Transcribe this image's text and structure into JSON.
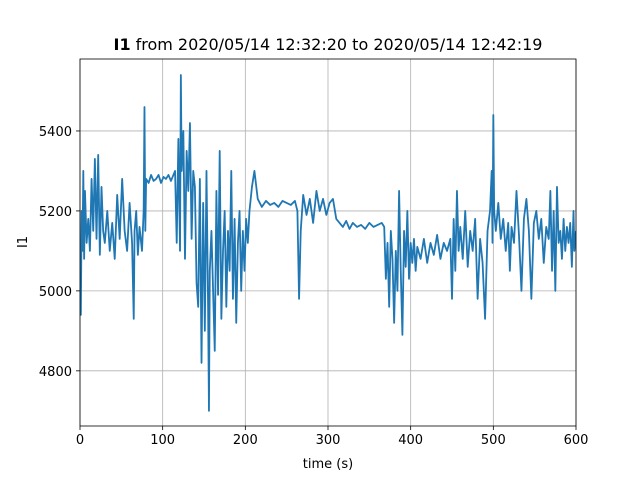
{
  "chart_data": {
    "type": "line",
    "title_bold": "I1",
    "title": "from 2020/05/14 12:32:20 to 2020/05/14 12:42:19",
    "x_label": "time (s)",
    "y_label": "I1",
    "xlim": [
      0,
      600
    ],
    "ylim": [
      4662,
      5580
    ],
    "xticks": [
      0,
      100,
      200,
      300,
      400,
      500,
      600
    ],
    "yticks": [
      4800,
      5000,
      5200,
      5400
    ],
    "grid": true,
    "x": [
      0,
      1,
      2,
      3,
      4,
      5,
      6,
      8,
      10,
      12,
      14,
      16,
      18,
      20,
      22,
      24,
      26,
      28,
      30,
      33,
      36,
      39,
      42,
      45,
      48,
      51,
      54,
      57,
      60,
      63,
      65,
      66,
      68,
      70,
      72,
      75,
      77,
      78,
      79,
      80,
      83,
      86,
      89,
      92,
      95,
      98,
      101,
      104,
      107,
      110,
      113,
      115,
      117,
      119,
      121,
      122,
      123,
      125,
      127,
      129,
      131,
      133,
      135,
      137,
      139,
      141,
      143,
      145,
      147,
      149,
      151,
      153,
      155,
      156,
      157,
      159,
      161,
      163,
      165,
      167,
      169,
      171,
      173,
      175,
      177,
      179,
      181,
      183,
      185,
      187,
      189,
      191,
      193,
      195,
      197,
      199,
      201,
      203,
      205,
      208,
      211,
      215,
      220,
      225,
      230,
      235,
      240,
      245,
      250,
      255,
      260,
      263,
      265,
      267,
      270,
      274,
      278,
      282,
      286,
      290,
      294,
      298,
      302,
      306,
      310,
      314,
      318,
      322,
      326,
      330,
      335,
      340,
      345,
      350,
      355,
      360,
      365,
      368,
      370,
      372,
      374,
      376,
      378,
      380,
      382,
      384,
      386,
      388,
      390,
      392,
      394,
      396,
      398,
      400,
      402,
      404,
      406,
      408,
      412,
      416,
      420,
      424,
      428,
      432,
      436,
      440,
      444,
      448,
      450,
      452,
      454,
      456,
      458,
      460,
      463,
      466,
      469,
      472,
      475,
      478,
      481,
      484,
      487,
      490,
      493,
      496,
      498,
      499,
      500,
      501,
      503,
      506,
      509,
      512,
      515,
      518,
      520,
      522,
      525,
      528,
      531,
      534,
      537,
      540,
      543,
      546,
      549,
      552,
      555,
      558,
      561,
      564,
      567,
      569,
      571,
      573,
      575,
      577,
      579,
      581,
      583,
      585,
      587,
      589,
      591,
      593,
      595,
      597,
      598,
      600
    ],
    "series": [
      {
        "name": "I1",
        "color": "#1f77b4",
        "values": [
          5050,
          4940,
          5200,
          5100,
          5300,
          5080,
          5250,
          5120,
          5180,
          5100,
          5280,
          5150,
          5330,
          5130,
          5340,
          5090,
          5260,
          5150,
          5120,
          5200,
          5100,
          5170,
          5080,
          5240,
          5130,
          5280,
          5150,
          5100,
          5220,
          5120,
          4930,
          5150,
          5200,
          5090,
          5160,
          5100,
          5200,
          5460,
          5150,
          5280,
          5270,
          5290,
          5275,
          5280,
          5290,
          5270,
          5285,
          5280,
          5290,
          5275,
          5290,
          5300,
          5120,
          5380,
          5100,
          5540,
          5300,
          5400,
          5080,
          5350,
          5250,
          5420,
          5130,
          5300,
          5260,
          5020,
          4960,
          5280,
          4820,
          5220,
          4900,
          5300,
          4950,
          4700,
          5050,
          5150,
          5000,
          4850,
          5250,
          4990,
          5350,
          4930,
          5100,
          5200,
          4960,
          5150,
          5050,
          5300,
          4980,
          5180,
          4920,
          5120,
          5200,
          5000,
          5150,
          5050,
          5180,
          5120,
          5200,
          5260,
          5300,
          5230,
          5210,
          5225,
          5215,
          5220,
          5210,
          5225,
          5220,
          5215,
          5225,
          5200,
          4980,
          5150,
          5240,
          5190,
          5230,
          5170,
          5250,
          5200,
          5230,
          5190,
          5220,
          5230,
          5180,
          5170,
          5160,
          5175,
          5155,
          5170,
          5160,
          5165,
          5155,
          5170,
          5160,
          5165,
          5170,
          5160,
          5030,
          5120,
          4960,
          5150,
          5080,
          4920,
          5100,
          5000,
          5250,
          5050,
          4890,
          5150,
          5060,
          5200,
          5030,
          5120,
          5070,
          5130,
          5050,
          5110,
          5080,
          5130,
          5070,
          5120,
          5090,
          5140,
          5080,
          5120,
          5100,
          5130,
          4980,
          5180,
          5050,
          5250,
          5100,
          5160,
          5080,
          5200,
          5060,
          5150,
          5100,
          5180,
          4980,
          5130,
          5070,
          4930,
          5150,
          5200,
          5300,
          5120,
          5440,
          5200,
          5150,
          5220,
          5130,
          5180,
          5100,
          5170,
          5050,
          5160,
          5120,
          5250,
          5140,
          5000,
          5180,
          5230,
          5150,
          4980,
          5170,
          5200,
          5130,
          5180,
          5070,
          5160,
          5130,
          5250,
          5050,
          5200,
          5000,
          5260,
          5120,
          5150,
          5080,
          5180,
          5100,
          5160,
          5120,
          5170,
          5060,
          5200,
          5100,
          5150
        ]
      }
    ]
  }
}
